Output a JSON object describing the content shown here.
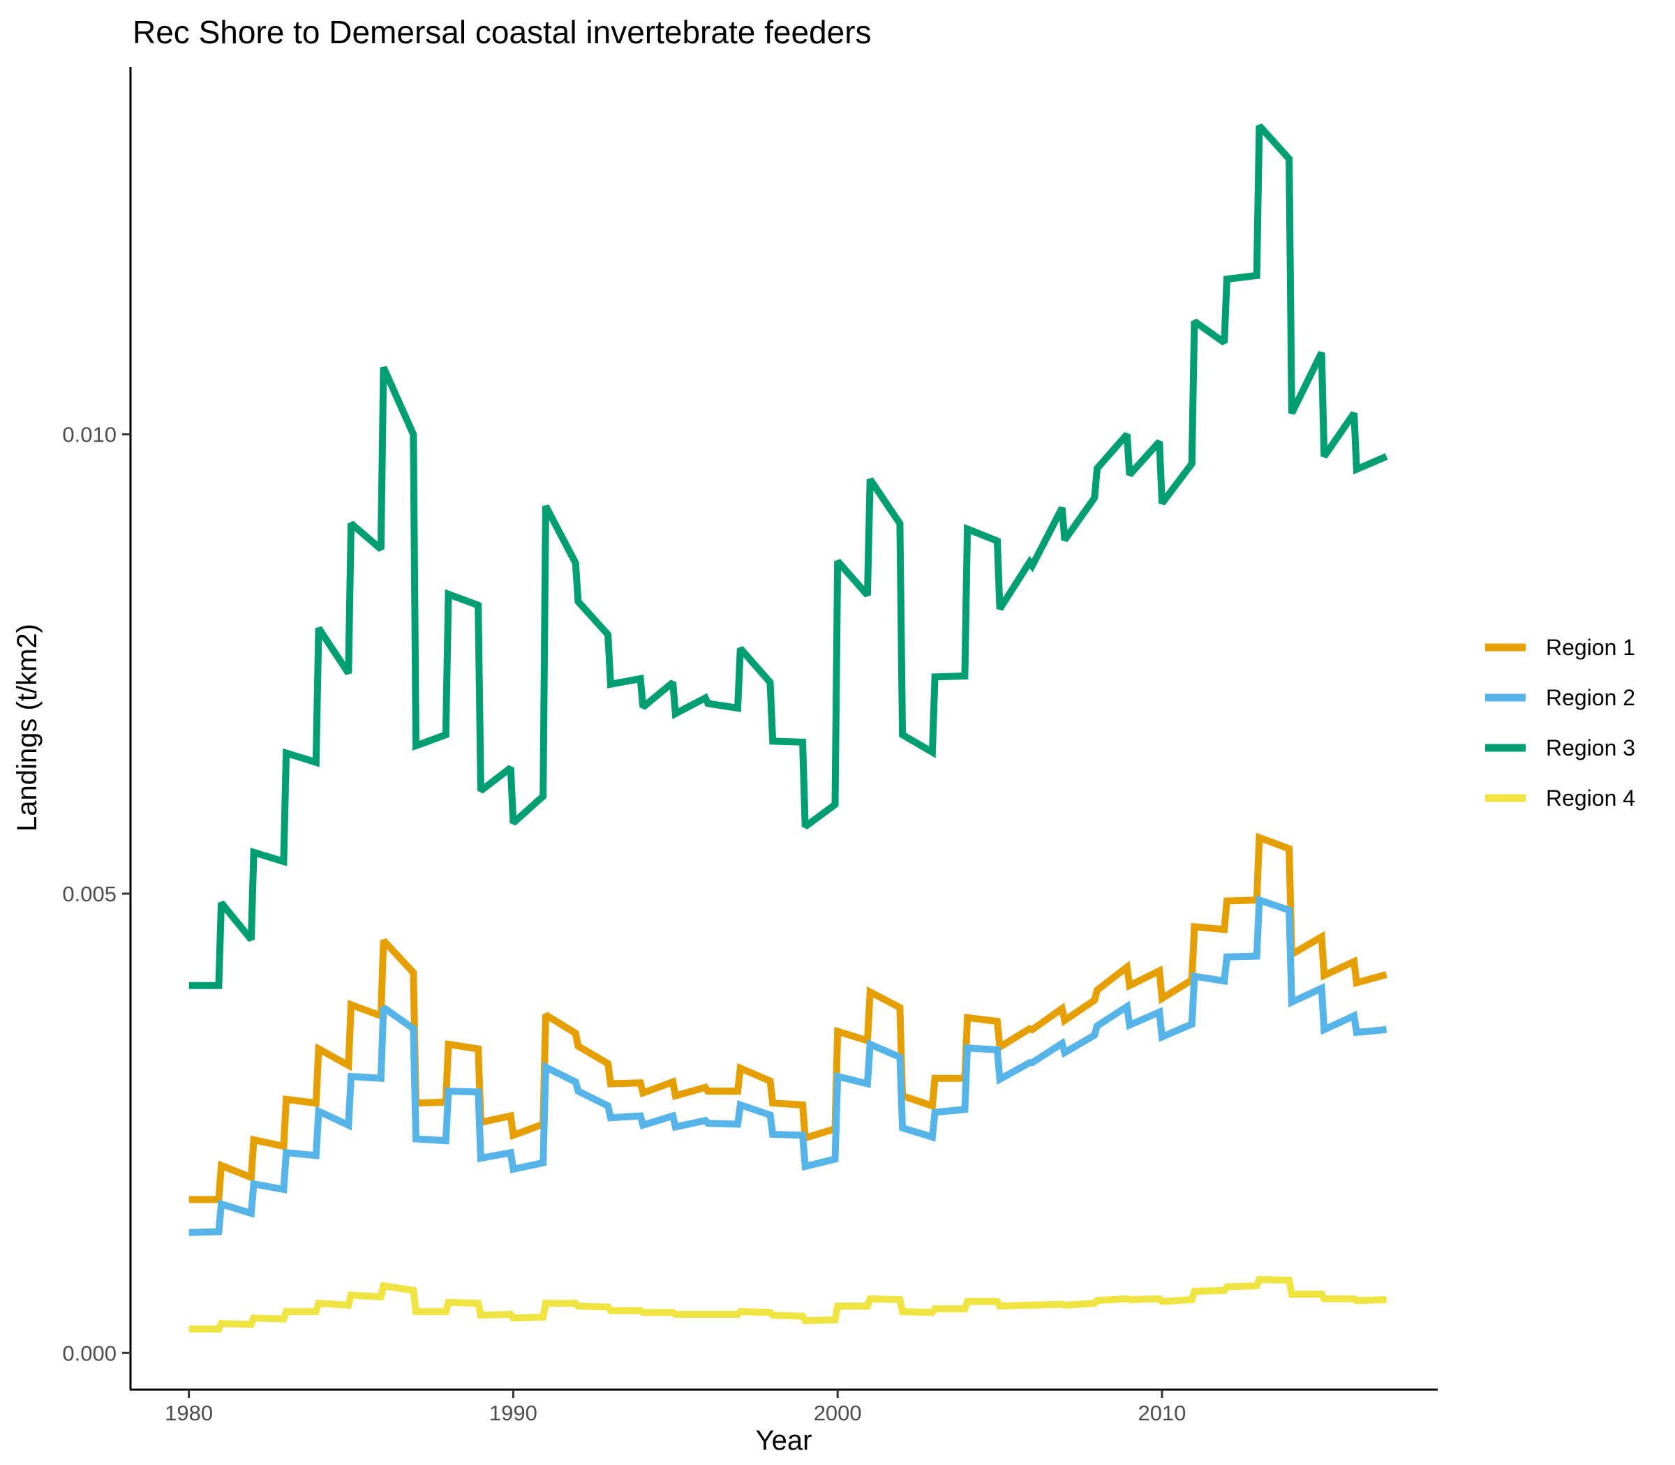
{
  "chart_data": {
    "type": "line",
    "title": "Rec Shore to Demersal coastal invertebrate feeders",
    "xlabel": "Year",
    "ylabel": "Landings (t/km2)",
    "xlim": [
      1978.2,
      2018.5
    ],
    "ylim": [
      -0.0004,
      0.014
    ],
    "x_ticks": [
      1980,
      1990,
      2000,
      2010
    ],
    "x_tick_labels": [
      "1980",
      "1990",
      "2000",
      "2010"
    ],
    "y_ticks": [
      0.0,
      0.005,
      0.01
    ],
    "y_tick_labels": [
      "0.000",
      "0.005",
      "0.010"
    ],
    "grid": false,
    "legend_position": "right",
    "x": [
      1980,
      1980.92,
      1981,
      1981.92,
      1982,
      1982.92,
      1983,
      1983.92,
      1984,
      1984.92,
      1985,
      1985.92,
      1986,
      1986.92,
      1987,
      1987.92,
      1988,
      1988.92,
      1989,
      1989.92,
      1990,
      1990.92,
      1991,
      1991.92,
      1992,
      1992.92,
      1993,
      1993.92,
      1994,
      1994.92,
      1995,
      1995.92,
      1996,
      1996.92,
      1997,
      1997.92,
      1998,
      1998.92,
      1999,
      1999.92,
      2000,
      2000.92,
      2001,
      2001.92,
      2002,
      2002.92,
      2003,
      2003.92,
      2004,
      2004.92,
      2005,
      2005.92,
      2006,
      2006.92,
      2007,
      2007.92,
      2008,
      2008.92,
      2009,
      2009.92,
      2010,
      2010.92,
      2011,
      2011.92,
      2012,
      2012.92,
      2013,
      2013.92,
      2014,
      2014.92,
      2015,
      2015.92,
      2016,
      2016.92
    ],
    "series": [
      {
        "name": "Region 1",
        "color": "#E69F00",
        "values": [
          0.00167,
          0.00167,
          0.00204,
          0.00191,
          0.00232,
          0.00225,
          0.00276,
          0.00272,
          0.00331,
          0.00313,
          0.00379,
          0.00367,
          0.00449,
          0.00414,
          0.00272,
          0.00273,
          0.00336,
          0.00331,
          0.00251,
          0.00258,
          0.00237,
          0.00249,
          0.00368,
          0.00348,
          0.00334,
          0.00315,
          0.00293,
          0.00294,
          0.00283,
          0.00295,
          0.0028,
          0.00289,
          0.00285,
          0.00285,
          0.0031,
          0.00296,
          0.00272,
          0.0027,
          0.00234,
          0.00244,
          0.0035,
          0.0034,
          0.00393,
          0.00376,
          0.0028,
          0.00269,
          0.00299,
          0.00299,
          0.00365,
          0.00361,
          0.00333,
          0.00353,
          0.00352,
          0.00375,
          0.00362,
          0.00384,
          0.00395,
          0.0042,
          0.004,
          0.00416,
          0.00386,
          0.00406,
          0.00464,
          0.00461,
          0.00492,
          0.00493,
          0.00561,
          0.00549,
          0.00434,
          0.00453,
          0.00411,
          0.00426,
          0.00403,
          0.00412
        ]
      },
      {
        "name": "Region 2",
        "color": "#56B4E9",
        "values": [
          0.00131,
          0.00132,
          0.00162,
          0.00152,
          0.00184,
          0.00178,
          0.00218,
          0.00215,
          0.00263,
          0.00248,
          0.00301,
          0.00299,
          0.00376,
          0.00353,
          0.00233,
          0.00231,
          0.00285,
          0.00284,
          0.00212,
          0.00218,
          0.002,
          0.00207,
          0.00311,
          0.00295,
          0.00285,
          0.00269,
          0.00256,
          0.00258,
          0.00248,
          0.00258,
          0.00246,
          0.00253,
          0.0025,
          0.00249,
          0.0027,
          0.00259,
          0.00238,
          0.00237,
          0.00203,
          0.00211,
          0.00301,
          0.00293,
          0.00336,
          0.00322,
          0.00245,
          0.00235,
          0.00262,
          0.00265,
          0.00332,
          0.0033,
          0.00298,
          0.00316,
          0.00316,
          0.00337,
          0.00327,
          0.00346,
          0.00356,
          0.00377,
          0.00357,
          0.00371,
          0.00344,
          0.00358,
          0.0041,
          0.00405,
          0.00431,
          0.00432,
          0.00493,
          0.00482,
          0.00382,
          0.00397,
          0.00352,
          0.00367,
          0.00349,
          0.00352
        ]
      },
      {
        "name": "Region 3",
        "color": "#009E73",
        "values": [
          0.004,
          0.004,
          0.0049,
          0.0045,
          0.00545,
          0.00535,
          0.00653,
          0.00643,
          0.00789,
          0.0074,
          0.00903,
          0.00875,
          0.01073,
          0.01,
          0.00661,
          0.00673,
          0.00826,
          0.00814,
          0.00612,
          0.00637,
          0.00577,
          0.00606,
          0.00922,
          0.0086,
          0.00818,
          0.00782,
          0.00728,
          0.00734,
          0.00703,
          0.0073,
          0.00696,
          0.00713,
          0.00707,
          0.00702,
          0.00767,
          0.0073,
          0.00666,
          0.00665,
          0.00573,
          0.00597,
          0.00862,
          0.00825,
          0.00951,
          0.00903,
          0.00673,
          0.00654,
          0.00736,
          0.00737,
          0.00897,
          0.00884,
          0.0081,
          0.00861,
          0.00857,
          0.0092,
          0.00885,
          0.00931,
          0.00963,
          0.01,
          0.00956,
          0.00992,
          0.00925,
          0.00968,
          0.01123,
          0.011,
          0.01169,
          0.01173,
          0.01336,
          0.013,
          0.01023,
          0.01089,
          0.00976,
          0.01023,
          0.00962,
          0.00976
        ]
      },
      {
        "name": "Region 4",
        "color": "#F0E442",
        "values": [
          0.00026,
          0.00026,
          0.00032,
          0.00031,
          0.00038,
          0.00037,
          0.00045,
          0.00045,
          0.00054,
          0.00052,
          0.00063,
          0.00061,
          0.00073,
          0.00068,
          0.00045,
          0.00045,
          0.00055,
          0.00054,
          0.00041,
          0.00042,
          0.00038,
          0.00039,
          0.00054,
          0.00054,
          0.00051,
          0.0005,
          0.00046,
          0.00046,
          0.00044,
          0.00044,
          0.00042,
          0.00042,
          0.00042,
          0.00042,
          0.00045,
          0.00044,
          0.00041,
          0.0004,
          0.00035,
          0.00036,
          0.00051,
          0.00051,
          0.00059,
          0.00058,
          0.00045,
          0.00044,
          0.00048,
          0.00048,
          0.00056,
          0.00056,
          0.00051,
          0.00052,
          0.00052,
          0.00053,
          0.00052,
          0.00054,
          0.00057,
          0.00059,
          0.00058,
          0.00059,
          0.00056,
          0.00058,
          0.00067,
          0.00068,
          0.00072,
          0.00073,
          0.0008,
          0.00079,
          0.00064,
          0.00064,
          0.00059,
          0.00059,
          0.00057,
          0.00058
        ]
      }
    ]
  }
}
